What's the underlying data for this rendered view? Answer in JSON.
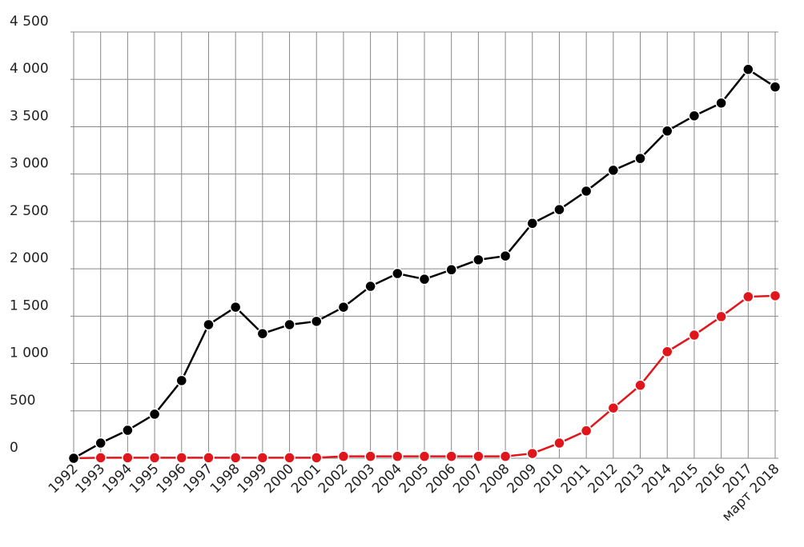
{
  "chart_data": {
    "type": "line",
    "categories": [
      "1992",
      "1993",
      "1994",
      "1995",
      "1996",
      "1997",
      "1998",
      "1999",
      "2000",
      "2001",
      "2002",
      "2003",
      "2004",
      "2005",
      "2006",
      "2007",
      "2008",
      "2009",
      "2010",
      "2011",
      "2012",
      "2013",
      "2014",
      "2015",
      "2016",
      "2017",
      "март 2018"
    ],
    "series": [
      {
        "color": "#000000",
        "values": [
          0,
          160,
          295,
          465,
          820,
          1410,
          1595,
          1315,
          1410,
          1445,
          1595,
          1815,
          1950,
          1890,
          1990,
          2095,
          2135,
          2480,
          2625,
          2820,
          3040,
          3165,
          3455,
          3615,
          3750,
          4105,
          3920
        ]
      },
      {
        "color": "#e0161c",
        "values": [
          0,
          5,
          5,
          5,
          5,
          5,
          5,
          5,
          5,
          5,
          20,
          20,
          20,
          20,
          20,
          20,
          20,
          50,
          160,
          290,
          530,
          770,
          1125,
          1300,
          1495,
          1705,
          1715
        ]
      }
    ],
    "ylim": [
      0,
      4500
    ],
    "yticks": [
      0,
      500,
      {
        "value": 1000,
        "label": "1 000"
      },
      {
        "value": 1500,
        "label": "1 500"
      },
      {
        "value": 2000,
        "label": "2 000"
      },
      {
        "value": 2500,
        "label": "2 500"
      },
      {
        "value": 3000,
        "label": "3 000"
      },
      {
        "value": 3500,
        "label": "3 500"
      },
      {
        "value": 4000,
        "label": "4 000"
      },
      {
        "value": 4500,
        "label": "4 500"
      }
    ],
    "grid": true
  }
}
